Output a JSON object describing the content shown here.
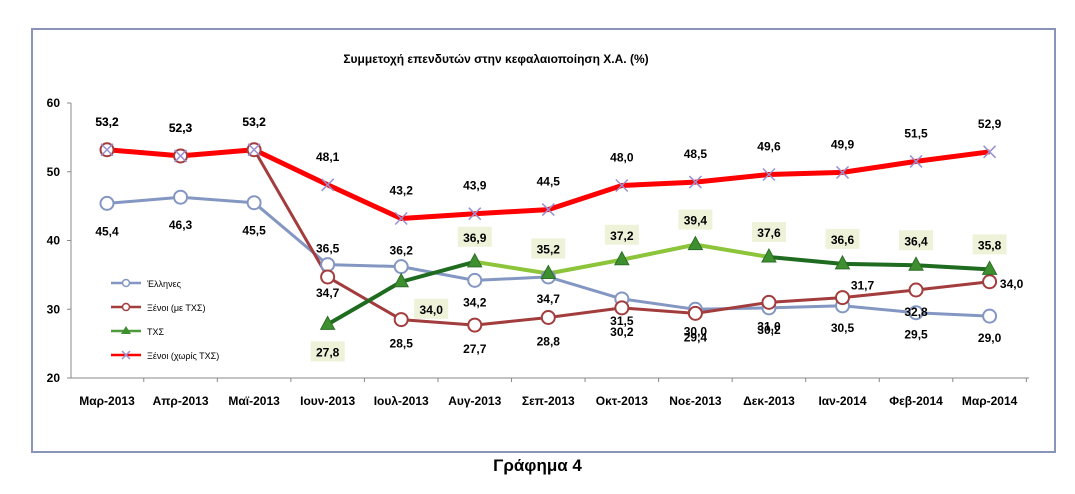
{
  "chart_data": {
    "type": "line",
    "title": "Συμμετοχή επενδυτών στην κεφαλαιοποίηση Χ.Α. (%)",
    "categories": [
      "Μαρ-2013",
      "Απρ-2013",
      "Μαϊ-2013",
      "Ιουν-2013",
      "Ιουλ-2013",
      "Αυγ-2013",
      "Σεπ-2013",
      "Οκτ-2013",
      "Νοε-2013",
      "Δεκ-2013",
      "Ιαν-2014",
      "Φεβ-2014",
      "Μαρ-2014"
    ],
    "ylim": [
      20,
      60
    ],
    "yticks": [
      "20",
      "30",
      "40",
      "50",
      "60"
    ],
    "grid": false,
    "legend_position": "left",
    "series": [
      {
        "name": "Έλληνες",
        "color": "#8496c2",
        "marker": "circle",
        "values": [
          45.4,
          46.3,
          45.5,
          36.5,
          36.2,
          34.2,
          34.7,
          31.5,
          30.0,
          30.2,
          30.5,
          29.5,
          29.0
        ],
        "labels": [
          "45,4",
          "46,3",
          "45,5",
          "36,5",
          "36,2",
          "34,2",
          "34,7",
          "31,5",
          "30,0",
          "30,2",
          "30,5",
          "29,5",
          "29,0"
        ]
      },
      {
        "name": "Ξένοι (με ΤΧΣ)",
        "color": "#a33c3c",
        "marker": "circle",
        "values": [
          53.2,
          52.3,
          53.2,
          34.7,
          28.5,
          27.7,
          28.8,
          30.2,
          29.4,
          31.0,
          31.7,
          32.8,
          34.0
        ],
        "labels": [
          "53,2",
          "52,3",
          "53,2",
          "34,7",
          "28,5",
          "27,7",
          "28,8",
          "30,2",
          "29,4",
          "31,0",
          "31,7",
          "32,8",
          "34,0"
        ]
      },
      {
        "name": "ΤΧΣ",
        "color": "#4e9a3c",
        "marker": "triangle",
        "values": [
          null,
          null,
          null,
          27.8,
          34.0,
          36.9,
          35.2,
          37.2,
          39.4,
          37.6,
          36.6,
          36.4,
          35.8
        ],
        "labels": [
          null,
          null,
          null,
          "27,8",
          "34,0",
          "36,9",
          "35,2",
          "37,2",
          "39,4",
          "37,6",
          "36,6",
          "36,4",
          "35,8"
        ]
      },
      {
        "name": "Ξένοι (χωρίς ΤΧΣ)",
        "color": "#ff0000",
        "marker": "x",
        "values": [
          53.2,
          52.3,
          53.2,
          48.1,
          43.2,
          43.9,
          44.5,
          48.0,
          48.5,
          49.6,
          49.9,
          51.5,
          52.9
        ],
        "labels": [
          "53,2",
          "52,3",
          "53,2",
          "48,1",
          "43,2",
          "43,9",
          "44,5",
          "48,0",
          "48,5",
          "49,6",
          "49,9",
          "51,5",
          "52,9"
        ]
      }
    ]
  },
  "caption": "Γράφημα 4"
}
